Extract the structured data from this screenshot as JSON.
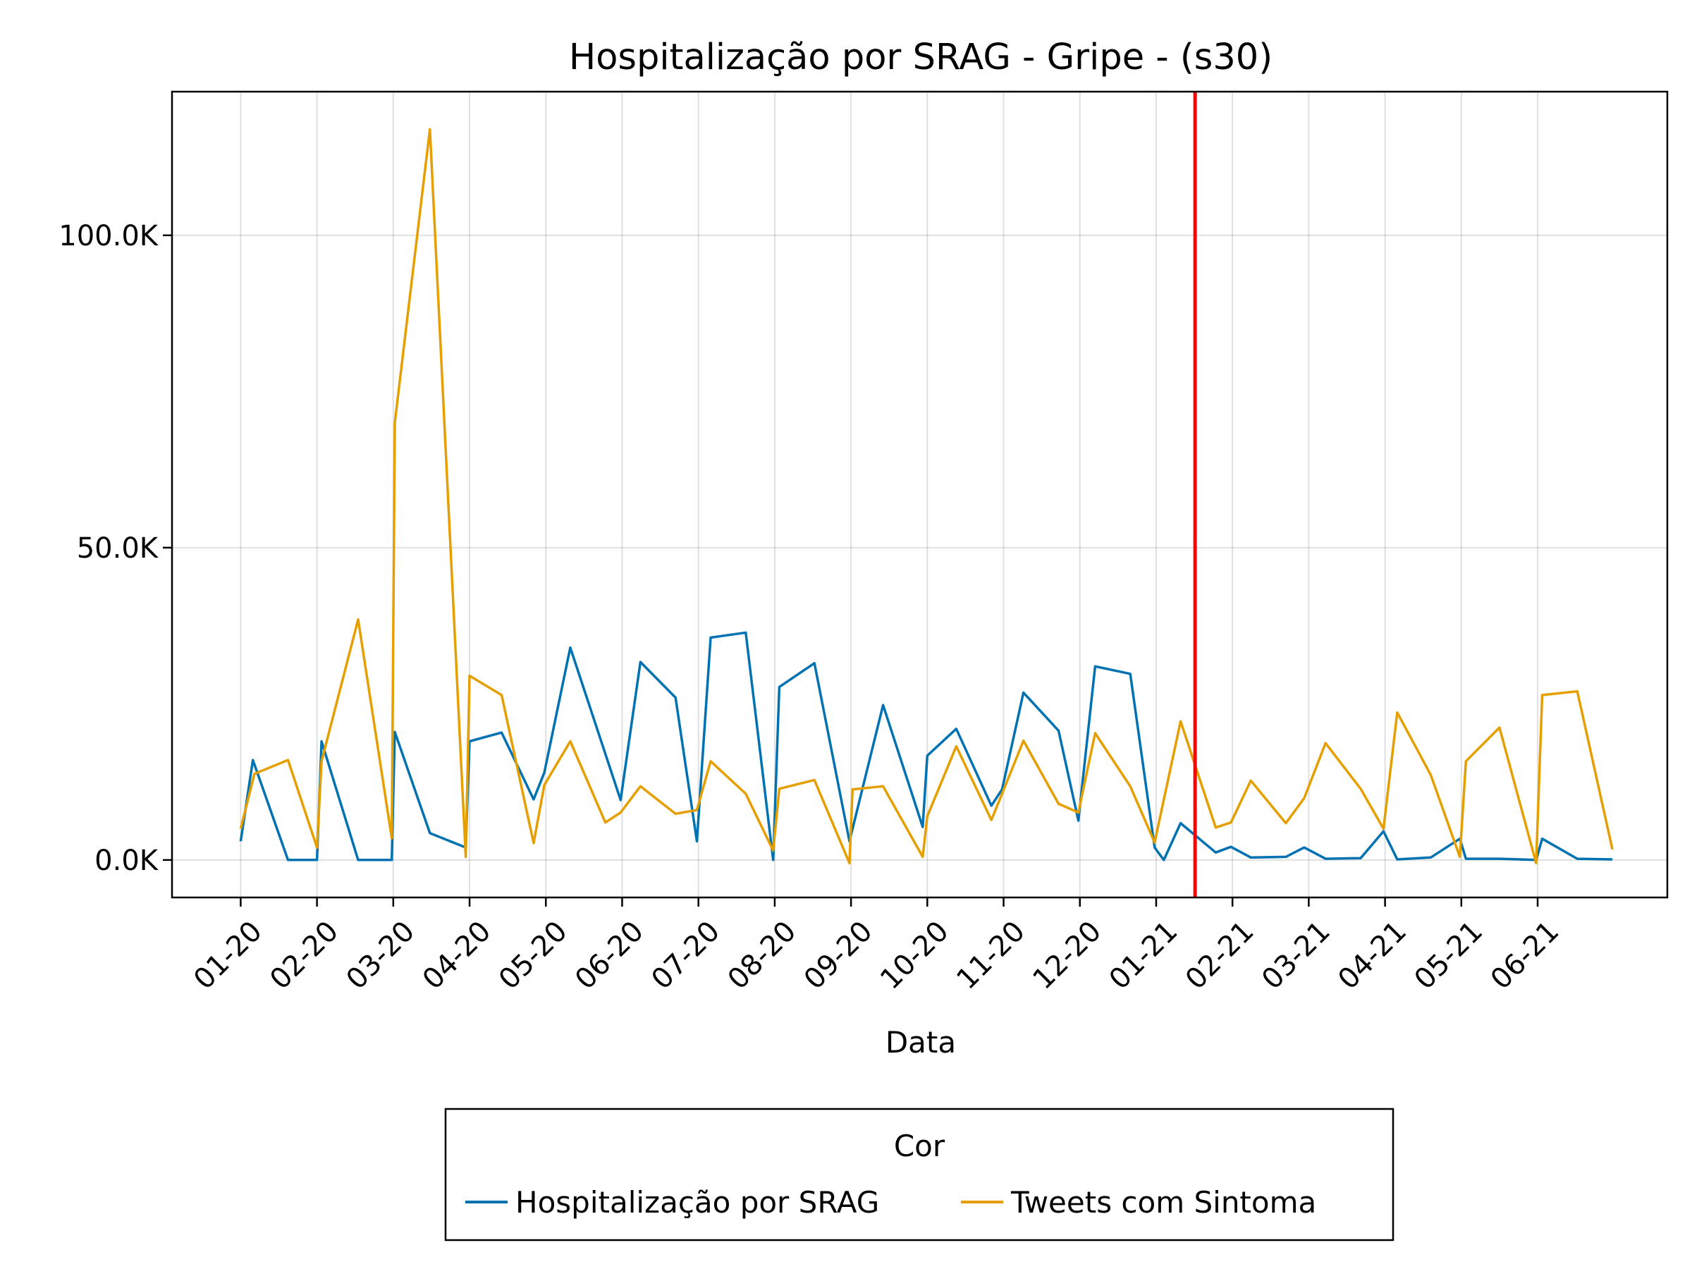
{
  "chart_data": {
    "type": "line",
    "title": "Hospitalização por SRAG - Gripe - (s30)",
    "xlabel": "Data",
    "ylabel": "",
    "ylim": [
      -6000,
      123000
    ],
    "yticks": [
      0,
      50000,
      100000
    ],
    "ytick_labels": [
      "0.0K",
      "50.0K",
      "100.0K"
    ],
    "xlim": [
      -0.9,
      18.7
    ],
    "xticks": [
      0,
      1,
      2,
      3,
      4,
      5,
      6,
      7,
      8,
      9,
      10,
      11,
      12,
      13,
      14,
      15,
      16,
      17
    ],
    "xtick_labels": [
      "01-20",
      "02-20",
      "03-20",
      "04-20",
      "05-20",
      "06-20",
      "07-20",
      "08-20",
      "09-20",
      "10-20",
      "11-20",
      "12-20",
      "01-21",
      "02-21",
      "03-21",
      "04-21",
      "05-21",
      "06-21"
    ],
    "x_unit": "months since 01-20",
    "vline": {
      "x": 12.51,
      "color": "#ff0000"
    },
    "grid": true,
    "legend": {
      "title": "Cor",
      "placement": "bottom-center"
    },
    "series": [
      {
        "name": "Hospitalização por SRAG",
        "color": "#0072b2",
        "x": [
          0,
          0.16,
          0.62,
          1.0,
          1.06,
          1.54,
          1.98,
          2.02,
          2.48,
          2.95,
          3.0,
          3.42,
          3.84,
          3.98,
          4.32,
          4.98,
          5.24,
          5.7,
          5.98,
          6.16,
          6.62,
          6.98,
          7.06,
          7.52,
          7.98,
          8.42,
          8.94,
          9.0,
          9.38,
          9.84,
          9.98,
          10.26,
          10.72,
          10.98,
          11.2,
          11.66,
          11.98,
          12.1,
          12.32,
          12.78,
          12.98,
          13.24,
          13.7,
          13.94,
          14.22,
          14.68,
          14.98,
          15.16,
          15.6,
          15.98,
          16.06,
          16.5,
          16.98,
          17.06,
          17.52,
          17.98
        ],
        "y": [
          3000,
          16000,
          0,
          0,
          19000,
          0,
          0,
          20500,
          4300,
          2000,
          19000,
          20400,
          9700,
          14000,
          34000,
          9600,
          31700,
          26000,
          3000,
          35600,
          36400,
          0,
          27700,
          31500,
          3000,
          24800,
          5300,
          16700,
          21000,
          8700,
          11300,
          26800,
          20700,
          6300,
          31000,
          29800,
          2000,
          0,
          5900,
          1200,
          2100,
          400,
          500,
          2000,
          200,
          300,
          4600,
          100,
          400,
          3400,
          200,
          200,
          0,
          3400,
          200,
          100
        ]
      },
      {
        "name": "Tweets com Sintoma",
        "color": "#e69f00",
        "x": [
          0,
          0.18,
          0.62,
          1.0,
          1.06,
          1.54,
          1.98,
          2.02,
          2.48,
          2.95,
          3.0,
          3.42,
          3.84,
          3.98,
          4.32,
          4.78,
          4.98,
          5.24,
          5.7,
          5.98,
          6.16,
          6.62,
          6.98,
          7.06,
          7.52,
          7.98,
          8.02,
          8.42,
          8.94,
          9.0,
          9.38,
          9.84,
          9.98,
          10.26,
          10.72,
          10.98,
          11.2,
          11.66,
          11.98,
          12.32,
          12.78,
          12.98,
          13.24,
          13.7,
          13.94,
          14.22,
          14.68,
          14.98,
          15.16,
          15.6,
          15.98,
          16.06,
          16.5,
          16.98,
          17.06,
          17.52,
          17.98
        ],
        "y": [
          5000,
          13800,
          16000,
          2000,
          15800,
          38500,
          3500,
          70000,
          117000,
          500,
          29500,
          26400,
          2700,
          12000,
          19000,
          6000,
          7600,
          11800,
          7400,
          8000,
          15800,
          10600,
          1500,
          11400,
          12800,
          -500,
          11300,
          11800,
          500,
          7000,
          18200,
          6400,
          10600,
          19100,
          9000,
          7600,
          20300,
          11800,
          2800,
          22200,
          5200,
          6000,
          12700,
          5900,
          9900,
          18700,
          11400,
          5000,
          23600,
          13600,
          500,
          15800,
          21200,
          -500,
          26400,
          27000,
          1700
        ]
      }
    ]
  }
}
